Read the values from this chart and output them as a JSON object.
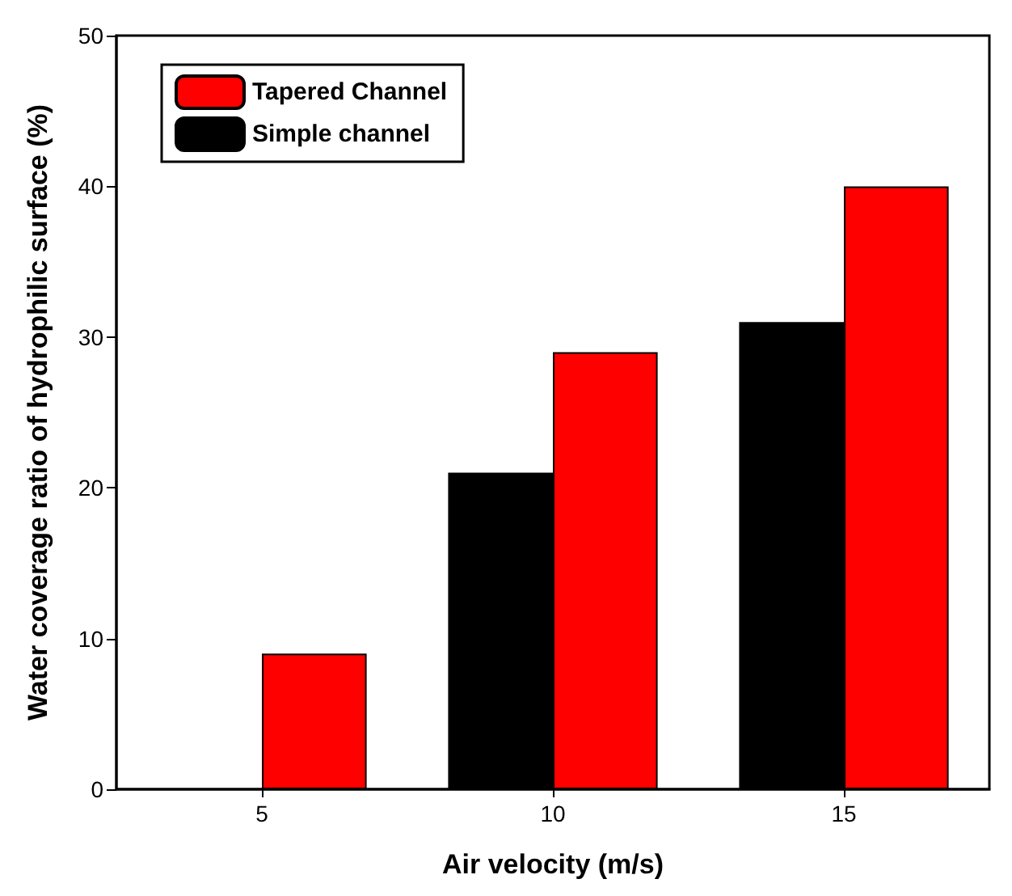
{
  "chart_data": {
    "type": "bar",
    "xlabel": "Air velocity (m/s)",
    "ylabel": "Water coverage ratio of hydrophilic surface (%)",
    "categories": [
      "5",
      "10",
      "15"
    ],
    "series": [
      {
        "name": "Simple channel",
        "color": "#000000",
        "values": [
          0,
          21,
          31
        ]
      },
      {
        "name": "Tapered Channel",
        "color": "#ff0000",
        "values": [
          9,
          29,
          40
        ]
      }
    ],
    "ylim": [
      0,
      50
    ],
    "yticks": [
      0,
      10,
      20,
      30,
      40,
      50
    ],
    "grid": false,
    "legend": "top left"
  }
}
